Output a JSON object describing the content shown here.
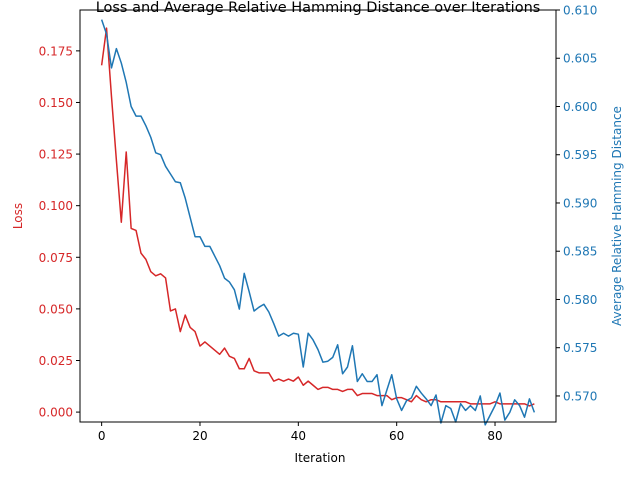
{
  "chart_data": {
    "type": "line",
    "title": "Loss and Average Relative Hamming Distance over Iterations",
    "xlabel": "Iteration",
    "ylabel_left": "Loss",
    "ylabel_right": "Average Relative Hamming Distance",
    "xlim": [
      -4.4,
      92.4
    ],
    "ylim_left": [
      -0.0048,
      0.1948
    ],
    "ylim_right": [
      0.5673,
      0.61
    ],
    "xticks": [
      0,
      20,
      40,
      60,
      80
    ],
    "yticks_left": [
      0.0,
      0.025,
      0.05,
      0.075,
      0.1,
      0.125,
      0.15,
      0.175
    ],
    "yticks_right": [
      0.57,
      0.575,
      0.58,
      0.585,
      0.59,
      0.595,
      0.6,
      0.605,
      0.61
    ],
    "grid": false,
    "colors": {
      "loss": "#d62728",
      "hamming": "#1f77b4",
      "axes": "#000000"
    },
    "series": [
      {
        "key": "loss",
        "axis": "left",
        "values": [
          0.168,
          0.186,
          0.153,
          0.122,
          0.092,
          0.126,
          0.089,
          0.088,
          0.077,
          0.074,
          0.068,
          0.066,
          0.067,
          0.065,
          0.049,
          0.05,
          0.039,
          0.047,
          0.041,
          0.039,
          0.032,
          0.034,
          0.032,
          0.03,
          0.028,
          0.031,
          0.027,
          0.026,
          0.021,
          0.021,
          0.026,
          0.02,
          0.019,
          0.019,
          0.019,
          0.015,
          0.016,
          0.015,
          0.016,
          0.015,
          0.017,
          0.013,
          0.015,
          0.013,
          0.011,
          0.012,
          0.012,
          0.011,
          0.011,
          0.01,
          0.011,
          0.011,
          0.008,
          0.009,
          0.009,
          0.009,
          0.008,
          0.008,
          0.008,
          0.006,
          0.007,
          0.007,
          0.006,
          0.005,
          0.008,
          0.006,
          0.005,
          0.006,
          0.006,
          0.005,
          0.005,
          0.005,
          0.005,
          0.005,
          0.005,
          0.004,
          0.004,
          0.004,
          0.004,
          0.004,
          0.005,
          0.004,
          0.004,
          0.004,
          0.004,
          0.004,
          0.004,
          0.003,
          0.004
        ]
      },
      {
        "key": "hamming",
        "axis": "right",
        "values": [
          0.609,
          0.6075,
          0.604,
          0.606,
          0.6045,
          0.6025,
          0.6,
          0.599,
          0.599,
          0.598,
          0.5968,
          0.5952,
          0.595,
          0.5938,
          0.593,
          0.5922,
          0.5921,
          0.5905,
          0.5885,
          0.5865,
          0.5865,
          0.5855,
          0.5855,
          0.5845,
          0.5835,
          0.5822,
          0.5818,
          0.581,
          0.579,
          0.5827,
          0.5808,
          0.5788,
          0.5792,
          0.5795,
          0.5787,
          0.5775,
          0.5762,
          0.5765,
          0.5762,
          0.5765,
          0.5764,
          0.573,
          0.5765,
          0.5758,
          0.5748,
          0.5735,
          0.5736,
          0.574,
          0.5753,
          0.5723,
          0.573,
          0.5752,
          0.5715,
          0.5723,
          0.5715,
          0.5715,
          0.5722,
          0.569,
          0.5706,
          0.5722,
          0.5697,
          0.5685,
          0.5695,
          0.5698,
          0.571,
          0.5703,
          0.5697,
          0.569,
          0.5701,
          0.5672,
          0.569,
          0.5687,
          0.5673,
          0.5692,
          0.5685,
          0.569,
          0.5685,
          0.57,
          0.567,
          0.568,
          0.569,
          0.5703,
          0.5675,
          0.5683,
          0.5696,
          0.569,
          0.5678,
          0.5697,
          0.5683
        ]
      }
    ]
  }
}
